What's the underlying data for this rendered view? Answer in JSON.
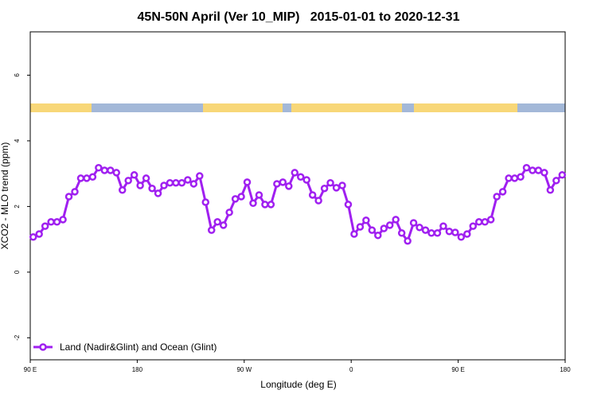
{
  "chart_data": {
    "type": "line",
    "title": "45N-50N April (Ver 10_MIP)   2015-01-01 to 2020-12-31",
    "x_label": "Longitude (deg E)",
    "y_label": "XCO2 - MLO trend (ppm)",
    "x": [
      92.5,
      97.5,
      102.5,
      107.5,
      112.5,
      117.5,
      122.5,
      127.5,
      132.5,
      137.5,
      142.5,
      147.5,
      152.5,
      157.5,
      162.5,
      167.5,
      172.5,
      177.5,
      182.5,
      187.5,
      192.5,
      197.5,
      202.5,
      207.5,
      212.5,
      217.5,
      222.5,
      227.5,
      232.5,
      237.5,
      242.5,
      247.5,
      252.5,
      257.5,
      262.5,
      267.5,
      272.5,
      277.5,
      282.5,
      287.5,
      292.5,
      297.5,
      302.5,
      307.5,
      312.5,
      317.5,
      322.5,
      327.5,
      332.5,
      337.5,
      342.5,
      347.5,
      352.5,
      357.5,
      362.5,
      367.5,
      372.5,
      377.5,
      382.5,
      387.5,
      392.5,
      397.5,
      402.5,
      407.5,
      412.5,
      417.5,
      422.5,
      427.5,
      432.5,
      437.5,
      442.5,
      447.5,
      452.5,
      457.5,
      462.5,
      467.5,
      472.5,
      477.5,
      482.5,
      487.5,
      492.5,
      497.5,
      502.5,
      507.5,
      512.5,
      517.5,
      522.5,
      527.5,
      532.5,
      537.5
    ],
    "series": [
      {
        "name": "Land (Nadir&Glint) and Ocean (Glint)",
        "color": "#a020f0",
        "values": [
          1.07,
          1.16,
          1.4,
          1.53,
          1.53,
          1.6,
          2.3,
          2.45,
          2.86,
          2.86,
          2.9,
          3.18,
          3.1,
          3.1,
          3.03,
          2.5,
          2.79,
          2.96,
          2.64,
          2.86,
          2.55,
          2.4,
          2.64,
          2.72,
          2.72,
          2.72,
          2.81,
          2.69,
          2.93,
          2.13,
          1.28,
          1.53,
          1.43,
          1.82,
          2.23,
          2.3,
          2.74,
          2.1,
          2.35,
          2.06,
          2.06,
          2.69,
          2.74,
          2.62,
          3.03,
          2.9,
          2.81,
          2.35,
          2.18,
          2.55,
          2.72,
          2.57,
          2.64,
          2.06,
          1.16,
          1.38,
          1.58,
          1.28,
          1.12,
          1.33,
          1.43,
          1.6,
          1.19,
          0.95,
          1.5,
          1.36,
          1.28,
          1.19,
          1.19,
          1.4,
          1.24,
          1.21,
          1.07,
          1.16,
          1.4,
          1.53,
          1.53,
          1.6,
          2.3,
          2.45,
          2.86,
          2.86,
          2.9,
          3.18,
          3.1,
          3.1,
          3.03,
          2.5,
          2.79,
          2.96
        ]
      }
    ],
    "xlim": [
      90,
      540
    ],
    "xticks": [
      {
        "value": 90,
        "label": "90 E"
      },
      {
        "value": 180,
        "label": "180"
      },
      {
        "value": 270,
        "label": "90 W"
      },
      {
        "value": 360,
        "label": "0"
      },
      {
        "value": 450,
        "label": "90 E"
      },
      {
        "value": 540,
        "label": "180"
      }
    ],
    "ylim": [
      -2.67,
      7.32
    ],
    "yticks": [
      -2,
      0,
      2,
      4,
      6
    ],
    "legend": "bottom-left"
  }
}
